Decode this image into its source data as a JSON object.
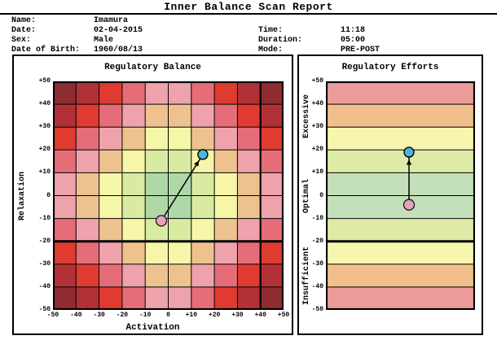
{
  "report": {
    "title": "Inner Balance Scan Report",
    "fields": {
      "name_label": "Name:",
      "name": "Imamura",
      "date_label": "Date:",
      "date": "02-04-2015",
      "sex_label": "Sex:",
      "sex": "Male",
      "dob_label": "Date of Birth:",
      "dob": "1960/08/13",
      "time_label": "Time:",
      "time": "11:18",
      "duration_label": "Duration:",
      "duration": "05:00",
      "mode_label": "Mode:",
      "mode": "PRE-POST"
    }
  },
  "chart_data": [
    {
      "type": "scatter",
      "title": "Regulatory Balance",
      "xlabel": "Activation",
      "ylabel": "Relaxation",
      "xlim": [
        -50,
        50
      ],
      "ylim": [
        -50,
        50
      ],
      "x_ticks": [
        "-50",
        "-40",
        "-30",
        "-20",
        "-10",
        "0",
        "+10",
        "+20",
        "+30",
        "+40",
        "+50"
      ],
      "y_ticks": [
        "+50",
        "+40",
        "+30",
        "+20",
        "+10",
        "0",
        "-10",
        "-20",
        "-30",
        "-40",
        "-50"
      ],
      "background": "10x10 diamond heatmap, color = ring distance from center (sum of |cell dist| on both axes)",
      "zone_palette_center_to_corner": [
        "#AED8A8",
        "#D9EBA0",
        "#F6F6A8",
        "#EEC28E",
        "#EEA3AC",
        "#E56D78",
        "#E03B30",
        "#B23136",
        "#8E2C31"
      ],
      "grid_line_color": "#000000",
      "bold_ref_lines": {
        "y": -20,
        "x": 40
      },
      "points": [
        {
          "name": "pre",
          "x": -3,
          "y": -11,
          "color": "#E8A2BB"
        },
        {
          "name": "post",
          "x": 15,
          "y": 18,
          "color": "#4CB4DC"
        }
      ],
      "arrow": {
        "from": "pre",
        "to": "post",
        "color": "#000000"
      }
    },
    {
      "type": "scatter",
      "title": "Regulatory Efforts",
      "ylim": [
        -50,
        50
      ],
      "y_ticks": [
        "+50",
        "+40",
        "+30",
        "+20",
        "+10",
        "0",
        "-10",
        "-20",
        "-30",
        "-40",
        "-50"
      ],
      "zones": [
        {
          "label": "Excessive",
          "from": 20,
          "to": 50
        },
        {
          "label": "Optimal",
          "from": -20,
          "to": 20
        },
        {
          "label": "Insufficient",
          "from": -50,
          "to": -20
        }
      ],
      "band_colors_top_to_bottom": [
        "#EC9B9B",
        "#F1BF8B",
        "#F7F5AE",
        "#DEEBA6",
        "#C3E0BA",
        "#C3E0BA",
        "#DEEBA6",
        "#F7F5AE",
        "#F1BF8B",
        "#EC9B9B"
      ],
      "bold_ref_lines": {
        "y": -20
      },
      "points": [
        {
          "name": "pre",
          "value": -4,
          "color": "#E8A2BB"
        },
        {
          "name": "post",
          "value": 19,
          "color": "#4CB4DC"
        }
      ],
      "arrow": {
        "from": "pre",
        "to": "post",
        "color": "#000000"
      }
    }
  ]
}
